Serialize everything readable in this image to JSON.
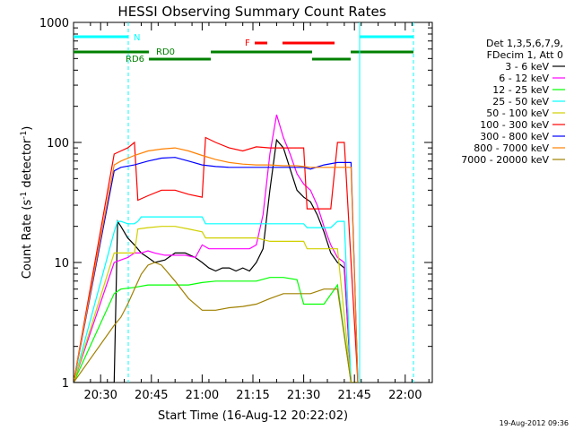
{
  "chart_data": {
    "type": "line",
    "title": "HESSI Observing Summary Count Rates",
    "xlabel": "Start Time (16-Aug-12 20:22:02)",
    "ylabel": "Count Rate (s",
    "ylabel_sup": "-1",
    "ylabel_tail": " detector",
    "ylabel_sup2": "-1",
    "ylabel_end": ")",
    "y_scale": "log",
    "ylim": [
      1,
      1000
    ],
    "xlim_minutes": [
      0,
      106
    ],
    "x_tick_labels": [
      "20:30",
      "20:45",
      "21:00",
      "21:15",
      "21:30",
      "21:45",
      "22:00"
    ],
    "x_tick_values": [
      8,
      23,
      38,
      53,
      68,
      83,
      98
    ],
    "y_tick_labels": [
      "1",
      "10",
      "100",
      "1000"
    ],
    "y_tick_values": [
      1,
      10,
      100,
      1000
    ],
    "legend_header": [
      "Det 1,3,5,6,7,9,",
      "FDecim 1, Att 0"
    ],
    "grid": false,
    "flag_labels": {
      "n": "N",
      "rd0": "RD0",
      "rd6": "RD6",
      "f": "F"
    },
    "series": [
      {
        "name": "3 - 6 keV",
        "color": "#000000",
        "x": [
          0,
          12,
          13,
          14,
          16,
          18,
          20,
          22,
          24,
          27,
          30,
          33,
          36,
          38,
          40,
          42,
          44,
          46,
          48,
          50,
          52,
          54,
          56,
          58,
          60,
          62,
          64,
          66,
          68,
          70,
          72,
          74,
          76,
          78,
          80,
          82,
          84
        ],
        "y": [
          1,
          1,
          22,
          20,
          16,
          14,
          12,
          11,
          10,
          10.5,
          12,
          12,
          11,
          10,
          9,
          8.5,
          9,
          9,
          8.5,
          9,
          8.5,
          10,
          13,
          40,
          105,
          90,
          60,
          40,
          35,
          32,
          25,
          18,
          12,
          10,
          9,
          1,
          1
        ]
      },
      {
        "name": "6 - 12 keV",
        "color": "#ff00ff",
        "x": [
          0,
          12,
          14,
          16,
          18,
          20,
          22,
          24,
          27,
          30,
          33,
          36,
          38,
          40,
          44,
          48,
          52,
          54,
          56,
          58,
          60,
          62,
          64,
          66,
          68,
          70,
          72,
          74,
          76,
          78,
          80,
          82,
          84
        ],
        "y": [
          1,
          10,
          10.5,
          11,
          12,
          12,
          12.5,
          12,
          11.5,
          11.5,
          11.5,
          11,
          14,
          13,
          13,
          13,
          13,
          14,
          25,
          80,
          170,
          110,
          80,
          55,
          45,
          40,
          30,
          20,
          14,
          11,
          10,
          1,
          1
        ]
      },
      {
        "name": "12 - 25 keV",
        "color": "#00ff00",
        "x": [
          0,
          12,
          14,
          18,
          22,
          26,
          30,
          34,
          38,
          42,
          46,
          50,
          54,
          58,
          62,
          66,
          68,
          70,
          74,
          78,
          82,
          84
        ],
        "y": [
          1,
          5.5,
          6,
          6.2,
          6.5,
          6.5,
          6.5,
          6.5,
          6.8,
          7,
          7,
          7,
          7,
          7.5,
          7.5,
          7.2,
          4.5,
          4.5,
          4.5,
          6.5,
          1,
          1
        ]
      },
      {
        "name": "25 - 50 keV",
        "color": "#00ffff",
        "x": [
          0,
          12,
          13,
          14,
          16,
          18,
          19,
          20,
          22,
          26,
          30,
          34,
          38,
          39,
          42,
          46,
          50,
          54,
          58,
          62,
          66,
          68,
          69,
          72,
          76,
          78,
          80,
          82,
          84
        ],
        "y": [
          1,
          18,
          22,
          22,
          21,
          21,
          22,
          24,
          24,
          24,
          24,
          24,
          24,
          21,
          21,
          21,
          21,
          21,
          21,
          21,
          21,
          21,
          19.5,
          19.5,
          19.5,
          22,
          22,
          1,
          1
        ]
      },
      {
        "name": "50 - 100 keV",
        "color": "#d0d000",
        "x": [
          0,
          12,
          16,
          18,
          19,
          22,
          26,
          30,
          34,
          38,
          39,
          42,
          46,
          50,
          54,
          58,
          62,
          66,
          68,
          69,
          72,
          76,
          78,
          82,
          84
        ],
        "y": [
          1,
          12,
          12,
          12,
          19,
          19.5,
          20,
          20,
          19,
          18,
          16,
          16,
          16,
          16,
          16,
          15,
          15,
          15,
          15,
          13,
          13,
          13,
          13,
          1,
          1
        ]
      },
      {
        "name": "100 - 300 keV",
        "color": "#ff0000",
        "x": [
          0,
          12,
          14,
          16,
          18,
          19,
          22,
          26,
          30,
          34,
          38,
          39,
          42,
          46,
          50,
          54,
          58,
          62,
          66,
          68,
          69,
          72,
          76,
          78,
          80,
          84
        ],
        "y": [
          1,
          80,
          85,
          90,
          100,
          33,
          36,
          40,
          40,
          37,
          35,
          110,
          100,
          90,
          85,
          92,
          90,
          90,
          90,
          90,
          28,
          28,
          28,
          100,
          100,
          1
        ]
      },
      {
        "name": "300 - 800 keV",
        "color": "#0000ff",
        "x": [
          0,
          12,
          14,
          18,
          22,
          26,
          30,
          34,
          38,
          42,
          46,
          50,
          54,
          58,
          62,
          66,
          68,
          70,
          74,
          78,
          82,
          84
        ],
        "y": [
          1,
          58,
          62,
          65,
          70,
          74,
          75,
          70,
          65,
          63,
          62,
          62,
          62,
          62,
          62,
          62,
          62,
          60,
          65,
          68,
          68,
          1
        ]
      },
      {
        "name": "800 - 7000 keV",
        "color": "#ff8000",
        "x": [
          0,
          12,
          14,
          18,
          22,
          26,
          30,
          34,
          38,
          42,
          46,
          50,
          54,
          58,
          62,
          66,
          68,
          70,
          74,
          78,
          82,
          84
        ],
        "y": [
          1,
          65,
          70,
          78,
          85,
          88,
          90,
          85,
          78,
          72,
          68,
          66,
          65,
          65,
          64,
          64,
          63,
          62,
          62,
          62,
          62,
          1
        ]
      },
      {
        "name": "7000 - 20000 keV",
        "color": "#a08000",
        "x": [
          0,
          12,
          14,
          16,
          18,
          20,
          22,
          24,
          26,
          30,
          34,
          38,
          42,
          46,
          50,
          54,
          58,
          62,
          66,
          68,
          70,
          74,
          78,
          82,
          84
        ],
        "y": [
          1,
          3,
          3.5,
          4.5,
          6,
          8,
          9.5,
          10,
          9.5,
          7,
          5,
          4,
          4,
          4.2,
          4.3,
          4.5,
          5,
          5.5,
          5.5,
          5.5,
          5.5,
          6,
          6,
          1,
          1
        ]
      }
    ]
  },
  "footer_date": "19-Aug-2012 09:36"
}
